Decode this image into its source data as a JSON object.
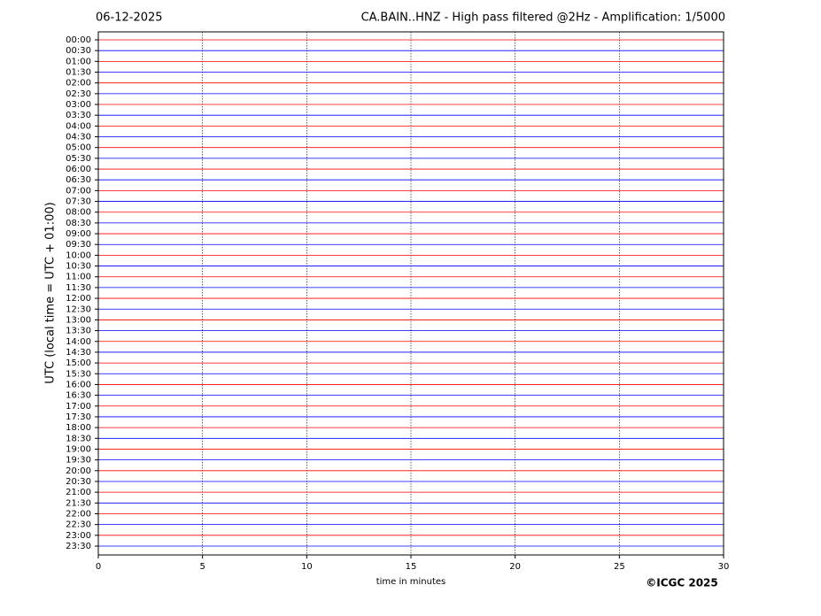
{
  "chart_data": {
    "type": "helicorder",
    "date": "06-12-2025",
    "title": "CA.BAIN..HNZ - High pass filtered @2Hz - Amplification: 1/5000",
    "y_label": "UTC (local time = UTC + 01:00)",
    "x_label": "time in minutes",
    "copyright": "©ICGC 2025",
    "categories": [
      "00:00",
      "00:30",
      "01:00",
      "01:30",
      "02:00",
      "02:30",
      "03:00",
      "03:30",
      "04:00",
      "04:30",
      "05:00",
      "05:30",
      "06:00",
      "06:30",
      "07:00",
      "07:30",
      "08:00",
      "08:30",
      "09:00",
      "09:30",
      "10:00",
      "10:30",
      "11:00",
      "11:30",
      "12:00",
      "12:30",
      "13:00",
      "13:30",
      "14:00",
      "14:30",
      "15:00",
      "15:30",
      "16:00",
      "16:30",
      "17:00",
      "17:30",
      "18:00",
      "18:30",
      "19:00",
      "19:30",
      "20:00",
      "20:30",
      "21:00",
      "21:30",
      "22:00",
      "22:30",
      "23:00",
      "23:30"
    ],
    "colors": [
      "#ff0000",
      "#0000ff"
    ],
    "xlim": [
      0,
      30
    ],
    "xticks": [
      0,
      5,
      10,
      15,
      20,
      25,
      30
    ],
    "grid": true
  }
}
